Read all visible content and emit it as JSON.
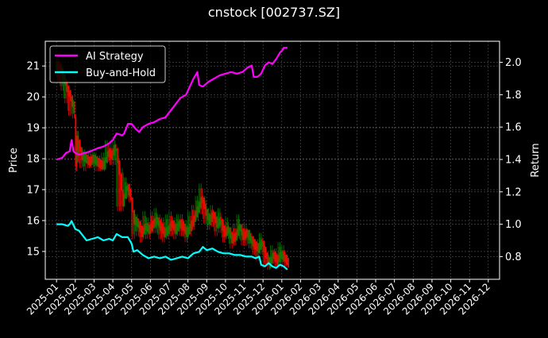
{
  "figure": {
    "title": "cnstock [002737.SZ]",
    "background": "#000000",
    "foreground": "#ffffff"
  },
  "chart_data": {
    "type": "line",
    "title": "cnstock [002737.SZ]",
    "xlabel": "",
    "ylabel": "Price",
    "y2label": "Return",
    "grid": true,
    "legend_position": "upper left",
    "x_ticks": [
      "2025-01",
      "2025-02",
      "2025-03",
      "2025-04",
      "2025-05",
      "2025-06",
      "2025-07",
      "2025-08",
      "2025-09",
      "2025-10",
      "2025-11",
      "2025-12",
      "2026-01",
      "2026-02",
      "2026-03",
      "2026-04",
      "2026-05",
      "2026-06",
      "2026-07",
      "2026-08",
      "2026-09",
      "2026-10",
      "2026-11",
      "2026-12"
    ],
    "y_ticks": [
      15,
      16,
      17,
      18,
      19,
      20,
      21
    ],
    "y2_ticks": [
      0.8,
      1.0,
      1.2,
      1.4,
      1.6,
      1.8,
      2.0
    ],
    "ylim": [
      14.1,
      21.8
    ],
    "y2lim": [
      0.66,
      2.13
    ],
    "xlim_months": [
      -0.6,
      23.6
    ],
    "colors": {
      "up": "#008000",
      "down": "#ff0000",
      "ai": "#ff00ff",
      "bh": "#00ffff",
      "grid": "#555555"
    },
    "series": [
      {
        "name": "AI Strategy",
        "axis": "right",
        "color": "#ff00ff",
        "x_months": [
          0.0,
          0.3,
          0.5,
          0.7,
          0.8,
          0.9,
          1.0,
          1.2,
          1.5,
          1.8,
          2.2,
          2.5,
          2.8,
          3.0,
          3.2,
          3.5,
          3.6,
          3.8,
          4.0,
          4.2,
          4.4,
          4.6,
          4.9,
          5.2,
          5.5,
          5.8,
          6.2,
          6.6,
          6.9,
          7.1,
          7.3,
          7.5,
          7.6,
          7.8,
          8.1,
          8.4,
          8.7,
          9.0,
          9.3,
          9.6,
          9.9,
          10.2,
          10.4,
          10.5,
          10.7,
          10.9,
          11.1,
          11.3,
          11.5,
          11.7,
          11.9,
          12.0,
          12.1,
          12.3
        ],
        "values": [
          1.4,
          1.41,
          1.44,
          1.45,
          1.52,
          1.45,
          1.44,
          1.43,
          1.44,
          1.45,
          1.47,
          1.48,
          1.5,
          1.52,
          1.56,
          1.55,
          1.56,
          1.62,
          1.62,
          1.59,
          1.57,
          1.6,
          1.62,
          1.63,
          1.65,
          1.66,
          1.72,
          1.78,
          1.8,
          1.85,
          1.9,
          1.94,
          1.86,
          1.85,
          1.88,
          1.9,
          1.92,
          1.93,
          1.94,
          1.93,
          1.94,
          1.97,
          1.98,
          1.91,
          1.91,
          1.93,
          1.98,
          2.0,
          1.99,
          2.02,
          2.06,
          2.07,
          2.09,
          2.09
        ]
      },
      {
        "name": "Buy-and-Hold",
        "axis": "right",
        "color": "#00ffff",
        "x_months": [
          0.0,
          0.3,
          0.6,
          0.7,
          0.8,
          1.0,
          1.2,
          1.4,
          1.6,
          1.9,
          2.2,
          2.5,
          2.8,
          3.0,
          3.2,
          3.5,
          3.8,
          4.0,
          4.1,
          4.3,
          4.6,
          4.9,
          5.2,
          5.5,
          5.8,
          6.1,
          6.4,
          6.7,
          7.0,
          7.3,
          7.6,
          7.8,
          8.0,
          8.3,
          8.6,
          8.9,
          9.2,
          9.5,
          9.8,
          10.1,
          10.4,
          10.6,
          10.8,
          10.9,
          11.1,
          11.3,
          11.5,
          11.7,
          11.9,
          12.1,
          12.3
        ],
        "values": [
          1.0,
          1.0,
          0.99,
          1.0,
          1.02,
          0.97,
          0.96,
          0.93,
          0.9,
          0.91,
          0.92,
          0.9,
          0.91,
          0.9,
          0.94,
          0.92,
          0.92,
          0.88,
          0.83,
          0.84,
          0.81,
          0.79,
          0.8,
          0.79,
          0.8,
          0.78,
          0.79,
          0.8,
          0.79,
          0.82,
          0.83,
          0.86,
          0.84,
          0.85,
          0.83,
          0.82,
          0.82,
          0.81,
          0.81,
          0.8,
          0.8,
          0.79,
          0.8,
          0.75,
          0.74,
          0.76,
          0.74,
          0.73,
          0.75,
          0.74,
          0.72
        ]
      },
      {
        "name": "Price (daily candles)",
        "axis": "left",
        "type": "candlestick",
        "x_months": [
          0.0,
          0.2,
          0.4,
          0.6,
          0.8,
          1.0,
          1.1,
          1.2,
          1.4,
          1.6,
          1.8,
          2.0,
          2.2,
          2.4,
          2.6,
          2.8,
          3.0,
          3.2,
          3.4,
          3.6,
          3.8,
          4.0,
          4.2,
          4.4,
          4.6,
          4.8,
          5.0,
          5.2,
          5.4,
          5.6,
          5.8,
          6.0,
          6.2,
          6.4,
          6.6,
          6.8,
          7.0,
          7.2,
          7.4,
          7.6,
          7.8,
          8.0,
          8.2,
          8.4,
          8.6,
          8.8,
          9.0,
          9.2,
          9.4,
          9.6,
          9.8,
          10.0,
          10.2,
          10.4,
          10.6,
          10.8,
          11.0,
          11.2,
          11.4,
          11.6,
          11.8,
          12.0,
          12.2
        ],
        "close": [
          21.0,
          20.7,
          20.3,
          20.0,
          19.6,
          18.0,
          18.6,
          18.1,
          18.0,
          17.9,
          18.0,
          17.9,
          17.8,
          17.8,
          18.2,
          18.1,
          18.4,
          17.6,
          16.6,
          17.1,
          16.8,
          16.0,
          15.9,
          15.6,
          15.8,
          15.7,
          15.9,
          16.0,
          15.8,
          15.6,
          15.7,
          15.9,
          15.7,
          15.9,
          15.8,
          15.6,
          15.8,
          16.1,
          16.4,
          16.7,
          16.3,
          16.0,
          16.2,
          15.9,
          16.0,
          15.6,
          15.7,
          15.4,
          15.5,
          15.8,
          15.5,
          15.6,
          15.4,
          15.2,
          15.1,
          15.3,
          14.9,
          14.6,
          14.9,
          14.7,
          14.9,
          14.8,
          14.6
        ],
        "high": [
          21.3,
          21.0,
          20.6,
          20.2,
          19.9,
          18.9,
          18.9,
          18.4,
          18.3,
          18.2,
          18.3,
          18.2,
          18.1,
          18.2,
          18.6,
          18.5,
          18.6,
          18.1,
          17.7,
          17.4,
          17.2,
          16.3,
          16.2,
          16.0,
          16.3,
          16.1,
          16.3,
          16.4,
          16.2,
          16.1,
          16.2,
          16.3,
          16.1,
          16.2,
          16.2,
          16.0,
          16.3,
          16.5,
          16.8,
          17.2,
          16.8,
          16.4,
          16.5,
          16.3,
          16.4,
          16.0,
          16.1,
          15.8,
          15.9,
          16.2,
          15.9,
          15.9,
          15.7,
          15.5,
          15.4,
          15.6,
          15.2,
          14.9,
          15.2,
          15.1,
          15.3,
          15.2,
          14.9
        ],
        "low": [
          20.5,
          20.2,
          19.8,
          19.4,
          19.3,
          17.6,
          17.9,
          17.7,
          17.6,
          17.7,
          17.7,
          17.6,
          17.6,
          17.6,
          17.9,
          17.8,
          17.8,
          16.3,
          16.3,
          16.7,
          16.6,
          15.4,
          15.5,
          15.3,
          15.4,
          15.4,
          15.6,
          15.6,
          15.4,
          15.3,
          15.4,
          15.5,
          15.4,
          15.5,
          15.5,
          15.3,
          15.5,
          15.7,
          16.0,
          16.2,
          15.9,
          15.7,
          15.8,
          15.5,
          15.6,
          15.3,
          15.4,
          15.1,
          15.2,
          15.4,
          15.2,
          15.2,
          15.1,
          14.9,
          14.7,
          14.9,
          14.5,
          14.4,
          14.6,
          14.5,
          14.6,
          14.5,
          14.5
        ]
      }
    ]
  }
}
